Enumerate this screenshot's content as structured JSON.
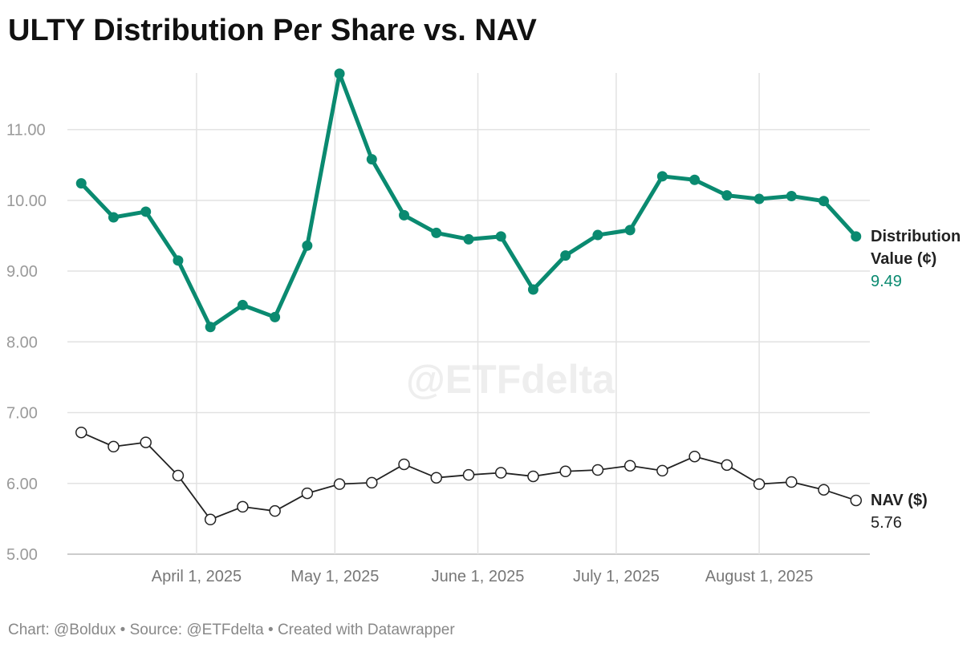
{
  "chart_data": {
    "type": "line",
    "title": "ULTY Distribution Per Share vs. NAV",
    "watermark": "@ETFdelta",
    "footer": "Chart: @Boldux • Source: @ETFdelta • Created with Datawrapper",
    "x": [
      "2025-03-07",
      "2025-03-14",
      "2025-03-21",
      "2025-03-28",
      "2025-04-04",
      "2025-04-11",
      "2025-04-18",
      "2025-04-25",
      "2025-05-02",
      "2025-05-09",
      "2025-05-16",
      "2025-05-23",
      "2025-05-30",
      "2025-06-06",
      "2025-06-13",
      "2025-06-20",
      "2025-06-27",
      "2025-07-04",
      "2025-07-11",
      "2025-07-18",
      "2025-07-25",
      "2025-08-01",
      "2025-08-08",
      "2025-08-15",
      "2025-08-22"
    ],
    "series": [
      {
        "name": "Distribution Value (¢)",
        "color": "#0a8a70",
        "marker": "filled",
        "values": [
          10.24,
          9.76,
          9.84,
          9.15,
          8.21,
          8.52,
          8.35,
          9.36,
          11.79,
          10.58,
          9.79,
          9.54,
          9.45,
          9.49,
          8.74,
          9.22,
          9.51,
          9.58,
          10.34,
          10.29,
          10.07,
          10.02,
          10.06,
          9.99,
          9.49
        ]
      },
      {
        "name": "NAV ($)",
        "color": "#222222",
        "marker": "hollow",
        "values": [
          6.72,
          6.52,
          6.58,
          6.11,
          5.49,
          5.67,
          5.61,
          5.86,
          5.99,
          6.01,
          6.27,
          6.08,
          6.12,
          6.15,
          6.1,
          6.17,
          6.19,
          6.25,
          6.18,
          6.38,
          6.26,
          5.99,
          6.02,
          5.91,
          5.76
        ]
      }
    ],
    "xlim": [
      "2025-03-04",
      "2025-08-25"
    ],
    "xticks": [
      {
        "value": "2025-04-01",
        "label": "April 1, 2025"
      },
      {
        "value": "2025-05-01",
        "label": "May 1, 2025"
      },
      {
        "value": "2025-06-01",
        "label": "June 1, 2025"
      },
      {
        "value": "2025-07-01",
        "label": "July 1, 2025"
      },
      {
        "value": "2025-08-01",
        "label": "August 1, 2025"
      }
    ],
    "ylim": [
      5,
      11.8
    ],
    "yticks": [
      {
        "value": 5,
        "label": "5.00"
      },
      {
        "value": 6,
        "label": "6.00"
      },
      {
        "value": 7,
        "label": "7.00"
      },
      {
        "value": 8,
        "label": "8.00"
      },
      {
        "value": 9,
        "label": "9.00"
      },
      {
        "value": 10,
        "label": "10.00"
      },
      {
        "value": 11,
        "label": "11.00"
      }
    ],
    "grid": true
  }
}
